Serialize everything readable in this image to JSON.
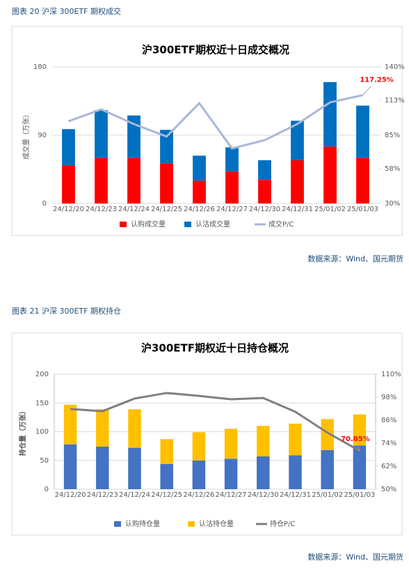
{
  "chart_data": [
    {
      "type": "bar",
      "caption": "图表 20  沪深 300ETF 期权成交",
      "title": "沪300ETF期权近十日成交概况",
      "y_label": "成交量（万张）",
      "categories": [
        "24/12/20",
        "24/12/23",
        "24/12/24",
        "24/12/25",
        "24/12/26",
        "24/12/27",
        "24/12/30",
        "24/12/31",
        "25/01/02",
        "25/01/03"
      ],
      "series": [
        {
          "name": "认购成交量",
          "type": "bar",
          "color": "#ff0000",
          "values": [
            50,
            60,
            60,
            53,
            30,
            42,
            31,
            57,
            75,
            60
          ]
        },
        {
          "name": "认沽成交量",
          "type": "bar",
          "color": "#0070c0",
          "values": [
            48,
            63,
            56,
            44,
            33,
            32,
            26,
            52,
            85,
            69
          ]
        },
        {
          "name": "成交P/C",
          "type": "line",
          "axis": "y2",
          "color": "#a9b6d9",
          "values": [
            96.2,
            105.8,
            94,
            83.9,
            110.8,
            74.3,
            81,
            94,
            111.4,
            117.25
          ],
          "value_labels": [
            null,
            null,
            null,
            null,
            null,
            null,
            null,
            null,
            null,
            "117.25%"
          ]
        }
      ],
      "ylim": [
        0,
        180
      ],
      "yticks": [
        0,
        90,
        180
      ],
      "y2lim": [
        30,
        140
      ],
      "y2ticks": [
        {
          "value": 30,
          "label": "30%"
        },
        {
          "value": 58,
          "label": "58%"
        },
        {
          "value": 85,
          "label": "85%"
        },
        {
          "value": 113,
          "label": "113%"
        },
        {
          "value": 140,
          "label": "140%"
        }
      ],
      "grid": true,
      "source": "数据来源：Wind、国元期货"
    },
    {
      "type": "bar",
      "caption": "图表 21  沪深 300ETF 期权持仓",
      "title": "沪300ETF期权近十日持仓概况",
      "y_label": "持仓量（万张）",
      "categories": [
        "24/12/20",
        "24/12/23",
        "24/12/24",
        "24/12/25",
        "24/12/26",
        "24/12/27",
        "24/12/30",
        "24/12/31",
        "25/01/02",
        "25/01/03"
      ],
      "series": [
        {
          "name": "认购持仓量",
          "type": "bar",
          "color": "#4472c4",
          "values": [
            78,
            74,
            72,
            44,
            50,
            53,
            57,
            59,
            68,
            76
          ]
        },
        {
          "name": "认沽持仓量",
          "type": "bar",
          "color": "#ffc000",
          "values": [
            69,
            65,
            67,
            43,
            49,
            52,
            53,
            55,
            54,
            54
          ]
        },
        {
          "name": "持仓P/C",
          "type": "line",
          "axis": "y2",
          "color": "#7f7f7f",
          "values": [
            91.8,
            90.7,
            97.3,
            100.2,
            98.7,
            96.9,
            97.6,
            90.4,
            79.5,
            70.05
          ],
          "value_labels": [
            null,
            null,
            null,
            null,
            null,
            null,
            null,
            null,
            null,
            "70.05%"
          ]
        }
      ],
      "ylim": [
        0,
        200
      ],
      "yticks": [
        0,
        50,
        100,
        150,
        200
      ],
      "y2lim": [
        50,
        110
      ],
      "y2ticks": [
        {
          "value": 50,
          "label": "50%"
        },
        {
          "value": 62,
          "label": "62%"
        },
        {
          "value": 74,
          "label": "74%"
        },
        {
          "value": 86,
          "label": "86%"
        },
        {
          "value": 98,
          "label": "98%"
        },
        {
          "value": 110,
          "label": "110%"
        }
      ],
      "grid": true,
      "source": "数据来源：Wind、国元期货"
    }
  ]
}
